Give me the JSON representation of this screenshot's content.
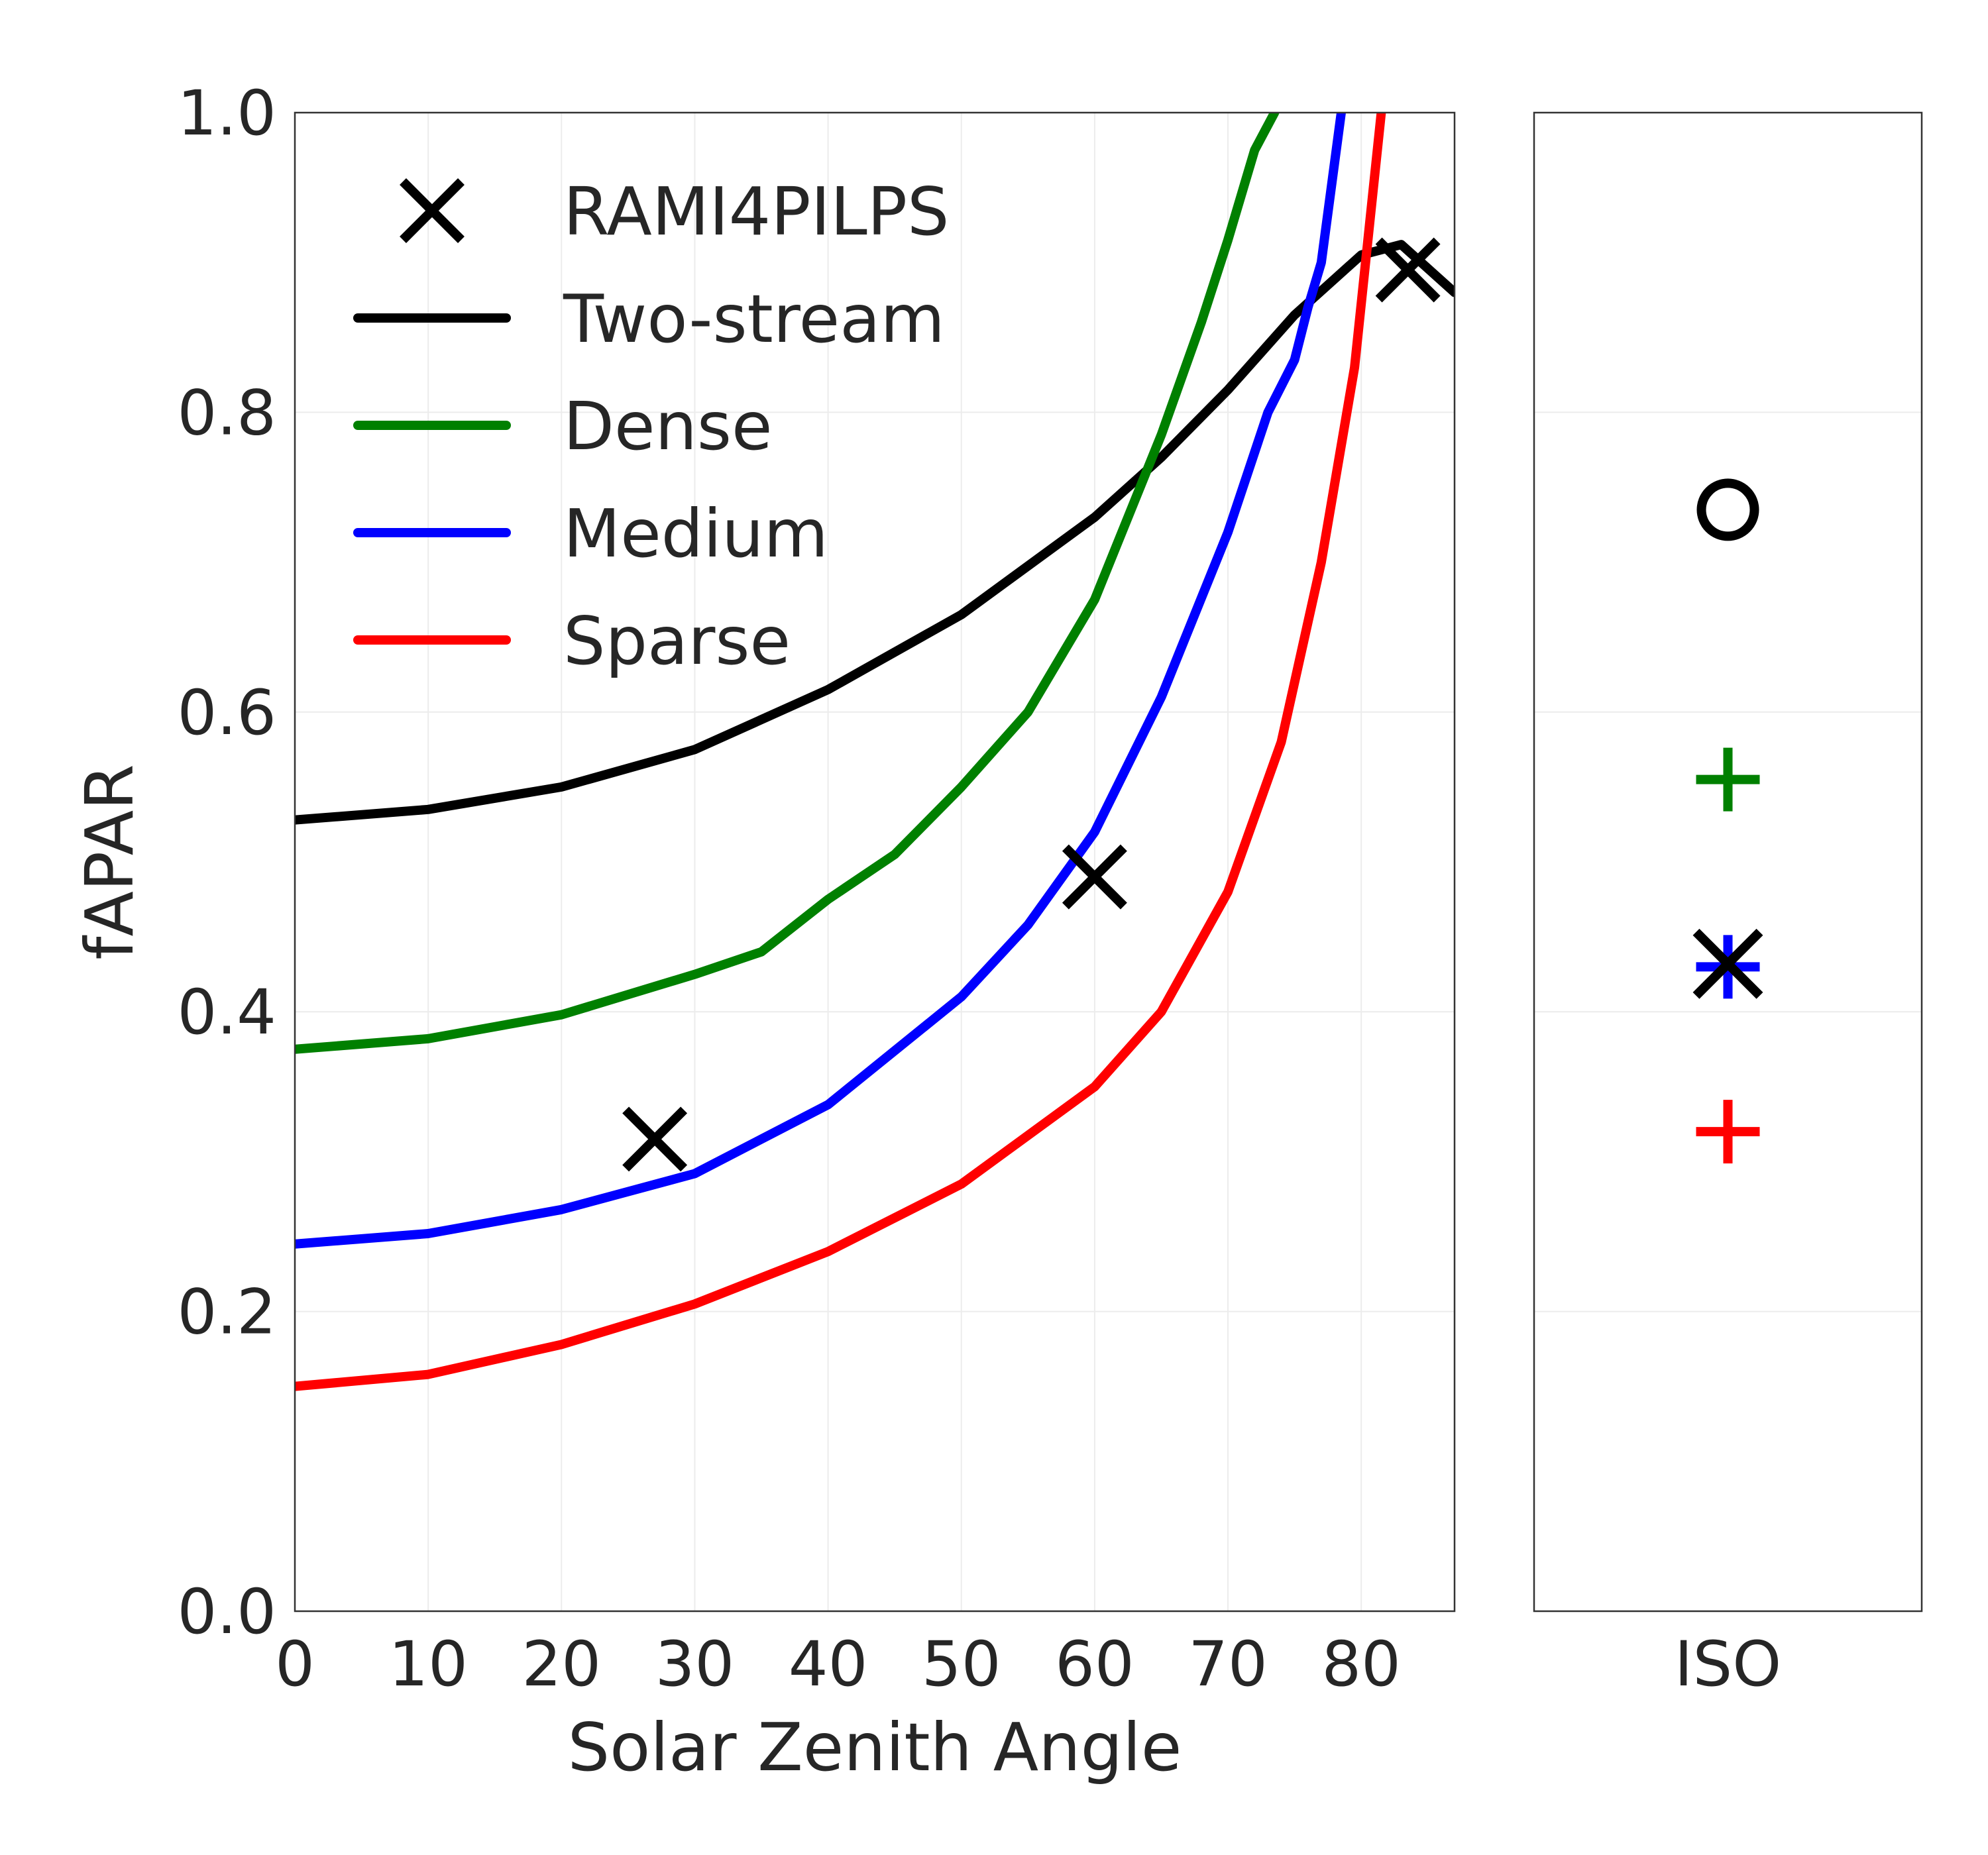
{
  "chart_data": [
    {
      "type": "line",
      "xlabel": "Solar Zenith Angle",
      "ylabel": "fAPAR",
      "xlim": [
        0,
        87
      ],
      "ylim": [
        0.0,
        1.0
      ],
      "x_ticks": [
        "0",
        "10",
        "20",
        "30",
        "40",
        "50",
        "60",
        "70",
        "80"
      ],
      "y_ticks": [
        "0.0",
        "0.2",
        "0.4",
        "0.6",
        "0.8",
        "1.0"
      ],
      "grid": true,
      "legend": "top-left",
      "series": [
        {
          "name": "Two-stream",
          "color": "#000000",
          "x": [
            0,
            10,
            20,
            30,
            40,
            50,
            60,
            65,
            70,
            75,
            80,
            83,
            87
          ],
          "y": [
            0.528,
            0.535,
            0.55,
            0.575,
            0.615,
            0.665,
            0.73,
            0.77,
            0.815,
            0.865,
            0.905,
            0.912,
            0.88
          ]
        },
        {
          "name": "Dense",
          "color": "#008000",
          "x": [
            0,
            10,
            20,
            30,
            35,
            40,
            45,
            50,
            55,
            60,
            65,
            68,
            70,
            72,
            73.5
          ],
          "y": [
            0.375,
            0.382,
            0.398,
            0.425,
            0.44,
            0.475,
            0.505,
            0.55,
            0.6,
            0.675,
            0.785,
            0.86,
            0.915,
            0.975,
            1.0
          ]
        },
        {
          "name": "Medium",
          "color": "#0000ff",
          "x": [
            0,
            10,
            20,
            30,
            40,
            50,
            55,
            60,
            65,
            70,
            73,
            75,
            76,
            77,
            78.5
          ],
          "y": [
            0.245,
            0.252,
            0.268,
            0.292,
            0.338,
            0.41,
            0.458,
            0.52,
            0.61,
            0.72,
            0.8,
            0.835,
            0.87,
            0.9,
            1.0
          ]
        },
        {
          "name": "Sparse",
          "color": "#ff0000",
          "x": [
            0,
            10,
            20,
            30,
            40,
            50,
            60,
            65,
            70,
            74,
            77,
            79.5,
            81.5
          ],
          "y": [
            0.15,
            0.158,
            0.178,
            0.205,
            0.24,
            0.285,
            0.35,
            0.4,
            0.48,
            0.58,
            0.7,
            0.83,
            1.0
          ]
        }
      ],
      "markers": {
        "name": "RAMI4PILPS",
        "symbol": "x",
        "color": "#000000",
        "points": [
          {
            "x": 27,
            "y": 0.315
          },
          {
            "x": 60,
            "y": 0.49
          },
          {
            "x": 83.5,
            "y": 0.895
          }
        ]
      }
    },
    {
      "type": "scatter",
      "categories": [
        "ISO"
      ],
      "ylim": [
        0.0,
        1.0
      ],
      "grid": true,
      "points": [
        {
          "category": "ISO",
          "y": 0.735,
          "symbol": "circle",
          "color": "#000000"
        },
        {
          "category": "ISO",
          "y": 0.555,
          "symbol": "plus",
          "color": "#008000"
        },
        {
          "category": "ISO",
          "y": 0.43,
          "symbol": "plus",
          "color": "#0000ff"
        },
        {
          "category": "ISO",
          "y": 0.32,
          "symbol": "plus",
          "color": "#ff0000"
        },
        {
          "category": "ISO",
          "y": 0.432,
          "symbol": "x",
          "color": "#000000"
        }
      ]
    }
  ]
}
